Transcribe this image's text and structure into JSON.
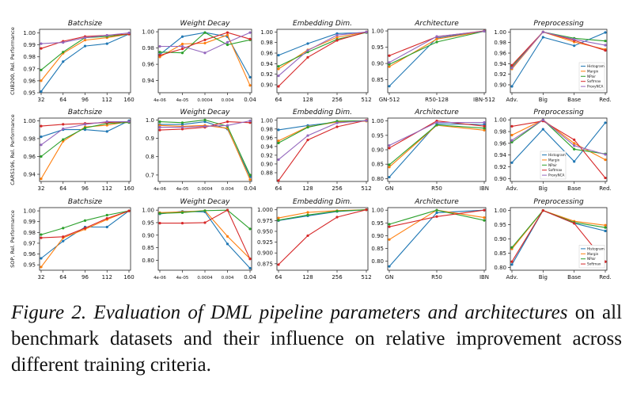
{
  "colors": {
    "Histogram": "#1f77b4",
    "Margin": "#ff7f0e",
    "NPair": "#2ca02c",
    "Softmax": "#d62728",
    "ProxyNCA": "#9467bd"
  },
  "caption": {
    "lead": "Figure 2.",
    "italic": "Evaluation of DML pipeline parameters and architectures",
    "rest": "on all benchmark datasets and their influence on relative improvement across different training criteria."
  },
  "chart_data": [
    {
      "type": "line",
      "row": 0,
      "col": 0,
      "title": "Batchsize",
      "ylabel": "CUB200, Rel. Performance",
      "categories": [
        "32",
        "64",
        "96",
        "112",
        "160"
      ],
      "ylim": [
        0.95,
        1.003
      ],
      "yticks": [
        0.95,
        0.96,
        0.97,
        0.98,
        0.99,
        1.0
      ],
      "ytick_labels": [
        "0.95",
        "0.96",
        "0.97",
        "0.98",
        "0.99",
        "1.00"
      ],
      "series": [
        {
          "name": "Histogram",
          "values": [
            0.951,
            0.976,
            0.989,
            0.991,
            0.999
          ]
        },
        {
          "name": "Margin",
          "values": [
            0.96,
            0.983,
            0.994,
            0.996,
            0.999
          ]
        },
        {
          "name": "NPair",
          "values": [
            0.969,
            0.984,
            0.996,
            0.997,
            0.999
          ]
        },
        {
          "name": "Softmax",
          "values": [
            0.987,
            0.993,
            0.997,
            0.998,
            0.999
          ]
        },
        {
          "name": "ProxyNCA",
          "values": [
            0.991,
            0.992,
            0.996,
            0.998,
            1.0
          ]
        }
      ]
    },
    {
      "type": "line",
      "row": 0,
      "col": 1,
      "title": "Weight Decay",
      "categories": [
        "4e-06",
        "4e-05",
        "0.0004",
        "0.004",
        "0.04"
      ],
      "ylim": [
        0.925,
        1.003
      ],
      "yticks": [
        0.94,
        0.96,
        0.98,
        1.0
      ],
      "ytick_labels": [
        "0.94",
        "0.96",
        "0.98",
        "1.00"
      ],
      "series": [
        {
          "name": "Histogram",
          "values": [
            0.972,
            0.994,
            0.999,
            0.994,
            0.944
          ]
        },
        {
          "name": "Margin",
          "values": [
            0.969,
            0.985,
            0.986,
            0.996,
            0.934
          ]
        },
        {
          "name": "NPair",
          "values": [
            0.975,
            0.974,
            0.999,
            0.984,
            0.99
          ]
        },
        {
          "name": "Softmax",
          "values": [
            0.971,
            0.979,
            0.99,
            0.999,
            0.991
          ]
        },
        {
          "name": "ProxyNCA",
          "values": [
            0.982,
            0.982,
            0.974,
            0.987,
            0.999
          ]
        }
      ]
    },
    {
      "type": "line",
      "row": 0,
      "col": 2,
      "title": "Embedding Dim.",
      "categories": [
        "64",
        "128",
        "256",
        "512"
      ],
      "ylim": [
        0.885,
        1.005
      ],
      "yticks": [
        0.9,
        0.92,
        0.94,
        0.96,
        0.98,
        1.0
      ],
      "ytick_labels": [
        "0.90",
        "0.92",
        "0.94",
        "0.96",
        "0.98",
        "1.00"
      ],
      "series": [
        {
          "name": "Histogram",
          "values": [
            0.956,
            0.978,
            0.997,
            0.999
          ]
        },
        {
          "name": "Margin",
          "values": [
            0.93,
            0.966,
            0.99,
            1.0
          ]
        },
        {
          "name": "NPair",
          "values": [
            0.935,
            0.962,
            0.986,
            0.999
          ]
        },
        {
          "name": "Softmax",
          "values": [
            0.897,
            0.952,
            0.984,
            1.0
          ]
        },
        {
          "name": "ProxyNCA",
          "values": [
            0.917,
            0.965,
            0.994,
            1.0
          ]
        }
      ]
    },
    {
      "type": "line",
      "row": 0,
      "col": 3,
      "title": "Architecture",
      "categories": [
        "GN-512",
        "R50-128",
        "IBN-512"
      ],
      "ylim": [
        0.81,
        1.005
      ],
      "yticks": [
        0.85,
        0.9,
        0.95,
        1.0
      ],
      "ytick_labels": [
        "0.85",
        "0.90",
        "0.95",
        "1.00"
      ],
      "series": [
        {
          "name": "Histogram",
          "values": [
            0.83,
            0.978,
            1.0
          ]
        },
        {
          "name": "Margin",
          "values": [
            0.89,
            0.975,
            0.999
          ]
        },
        {
          "name": "NPair",
          "values": [
            0.897,
            0.966,
            0.999
          ]
        },
        {
          "name": "Softmax",
          "values": [
            0.924,
            0.982,
            1.0
          ]
        },
        {
          "name": "ProxyNCA",
          "values": [
            0.903,
            0.983,
            0.999
          ]
        }
      ]
    },
    {
      "type": "line",
      "row": 0,
      "col": 4,
      "title": "Preprocessing",
      "categories": [
        "Adv.",
        "Big",
        "Base",
        "Red."
      ],
      "ylim": [
        0.885,
        1.005
      ],
      "yticks": [
        0.9,
        0.92,
        0.94,
        0.96,
        0.98,
        1.0
      ],
      "ytick_labels": [
        "0.90",
        "0.92",
        "0.94",
        "0.96",
        "0.98",
        "1.00"
      ],
      "legend": [
        "Histogram",
        "Margin",
        "NPair",
        "Softmax",
        "ProxyNCA"
      ],
      "legend_position": "bottom-right",
      "series": [
        {
          "name": "Histogram",
          "values": [
            0.897,
            0.99,
            0.974,
            0.999
          ]
        },
        {
          "name": "Margin",
          "values": [
            0.93,
            1.0,
            0.981,
            0.967
          ]
        },
        {
          "name": "NPair",
          "values": [
            0.934,
            1.0,
            0.988,
            0.983
          ]
        },
        {
          "name": "Softmax",
          "values": [
            0.937,
            1.0,
            0.984,
            0.965
          ]
        },
        {
          "name": "ProxyNCA",
          "values": [
            0.932,
            1.0,
            0.986,
            0.975
          ]
        }
      ]
    },
    {
      "type": "line",
      "row": 1,
      "col": 0,
      "title": "Batchsize",
      "ylabel": "CARS196, Rel. Performance",
      "categories": [
        "32",
        "64",
        "96",
        "112",
        "160"
      ],
      "ylim": [
        0.932,
        1.003
      ],
      "yticks": [
        0.94,
        0.96,
        0.98,
        1.0
      ],
      "ytick_labels": [
        "0.94",
        "0.96",
        "0.98",
        "1.00"
      ],
      "series": [
        {
          "name": "Histogram",
          "values": [
            0.982,
            0.99,
            0.99,
            0.988,
            1.0
          ]
        },
        {
          "name": "Margin",
          "values": [
            0.935,
            0.977,
            0.993,
            0.995,
            0.999
          ]
        },
        {
          "name": "NPair",
          "values": [
            0.96,
            0.979,
            0.992,
            0.997,
            0.998
          ]
        },
        {
          "name": "Softmax",
          "values": [
            0.994,
            0.996,
            0.997,
            0.998,
            0.999
          ]
        },
        {
          "name": "ProxyNCA",
          "values": [
            0.973,
            0.991,
            0.996,
            0.999,
            0.999
          ]
        }
      ]
    },
    {
      "type": "line",
      "row": 1,
      "col": 1,
      "title": "Weight Decay",
      "categories": [
        "4e-06",
        "4e-05",
        "0.0004",
        "0.004",
        "0.04"
      ],
      "ylim": [
        0.665,
        1.01
      ],
      "yticks": [
        0.7,
        0.8,
        0.9,
        1.0
      ],
      "ytick_labels": [
        "0.7",
        "0.8",
        "0.9",
        "1.0"
      ],
      "series": [
        {
          "name": "Histogram",
          "values": [
            0.975,
            0.975,
            0.99,
            0.95,
            0.69
          ]
        },
        {
          "name": "Margin",
          "values": [
            0.97,
            0.965,
            0.97,
            0.955,
            0.675
          ]
        },
        {
          "name": "NPair",
          "values": [
            0.99,
            0.985,
            1.0,
            0.965,
            0.7
          ]
        },
        {
          "name": "Softmax",
          "values": [
            0.945,
            0.95,
            0.96,
            0.99,
            0.985
          ]
        },
        {
          "name": "ProxyNCA",
          "values": [
            0.96,
            0.96,
            0.965,
            0.97,
            0.995
          ]
        }
      ]
    },
    {
      "type": "line",
      "row": 1,
      "col": 2,
      "title": "Embedding Dim.",
      "categories": [
        "64",
        "128",
        "256",
        "512"
      ],
      "ylim": [
        0.86,
        1.005
      ],
      "yticks": [
        0.88,
        0.9,
        0.92,
        0.94,
        0.96,
        0.98,
        1.0
      ],
      "ytick_labels": [
        "0.88",
        "0.90",
        "0.92",
        "0.94",
        "0.96",
        "0.98",
        "1.00"
      ],
      "series": [
        {
          "name": "Histogram",
          "values": [
            0.978,
            0.988,
            0.996,
            0.999
          ]
        },
        {
          "name": "Margin",
          "values": [
            0.953,
            0.985,
            0.996,
            0.998
          ]
        },
        {
          "name": "NPair",
          "values": [
            0.948,
            0.984,
            0.998,
            0.999
          ]
        },
        {
          "name": "Softmax",
          "values": [
            0.862,
            0.955,
            0.985,
            1.0
          ]
        },
        {
          "name": "ProxyNCA",
          "values": [
            0.91,
            0.965,
            0.994,
            0.999
          ]
        }
      ]
    },
    {
      "type": "line",
      "row": 1,
      "col": 3,
      "title": "Architecture",
      "categories": [
        "GN",
        "R50",
        "IBN"
      ],
      "ylim": [
        0.79,
        1.01
      ],
      "yticks": [
        0.8,
        0.85,
        0.9,
        0.95,
        1.0
      ],
      "ytick_labels": [
        "0.80",
        "0.85",
        "0.90",
        "0.95",
        "1.00"
      ],
      "series": [
        {
          "name": "Histogram",
          "values": [
            0.805,
            0.99,
            0.988
          ]
        },
        {
          "name": "Margin",
          "values": [
            0.84,
            0.985,
            0.968
          ]
        },
        {
          "name": "NPair",
          "values": [
            0.848,
            0.986,
            0.975
          ]
        },
        {
          "name": "Softmax",
          "values": [
            0.906,
            1.0,
            0.982
          ]
        },
        {
          "name": "ProxyNCA",
          "values": [
            0.915,
            0.995,
            0.995
          ]
        }
      ]
    },
    {
      "type": "line",
      "row": 1,
      "col": 4,
      "title": "Preprocessing",
      "categories": [
        "Adv.",
        "Big",
        "Base",
        "Red."
      ],
      "ylim": [
        0.895,
        1.003
      ],
      "yticks": [
        0.9,
        0.92,
        0.94,
        0.96,
        0.98,
        1.0
      ],
      "ytick_labels": [
        "0.90",
        "0.92",
        "0.94",
        "0.96",
        "0.98",
        "1.00"
      ],
      "legend": [
        "Histogram",
        "Margin",
        "NPair",
        "Softmax",
        "ProxyNCA"
      ],
      "legend_position": "center-left",
      "series": [
        {
          "name": "Histogram",
          "values": [
            0.927,
            0.984,
            0.929,
            0.995
          ]
        },
        {
          "name": "Margin",
          "values": [
            0.974,
            1.0,
            0.96,
            0.932
          ]
        },
        {
          "name": "NPair",
          "values": [
            0.962,
            1.0,
            0.95,
            0.942
          ]
        },
        {
          "name": "Softmax",
          "values": [
            0.989,
            0.998,
            0.966,
            0.901
          ]
        },
        {
          "name": "ProxyNCA",
          "values": [
            0.965,
            1.0,
            0.956,
            0.941
          ]
        }
      ]
    },
    {
      "type": "line",
      "row": 2,
      "col": 0,
      "title": "Batchsize",
      "ylabel": "SOP, Rel. Performance",
      "categories": [
        "32",
        "64",
        "96",
        "112",
        "160"
      ],
      "ylim": [
        0.945,
        1.003
      ],
      "yticks": [
        0.95,
        0.96,
        0.97,
        0.98,
        0.99,
        1.0
      ],
      "ytick_labels": [
        "0.95",
        "0.96",
        "0.97",
        "0.98",
        "0.99",
        "1.00"
      ],
      "series": [
        {
          "name": "Histogram",
          "values": [
            0.956,
            0.972,
            0.985,
            0.985,
            1.0
          ]
        },
        {
          "name": "Margin",
          "values": [
            0.948,
            0.975,
            0.983,
            0.992,
            1.0
          ]
        },
        {
          "name": "NPair",
          "values": [
            0.978,
            0.984,
            0.991,
            0.996,
            1.0
          ]
        },
        {
          "name": "Softmax",
          "values": [
            0.975,
            0.976,
            0.984,
            0.993,
            1.0
          ]
        }
      ]
    },
    {
      "type": "line",
      "row": 2,
      "col": 1,
      "title": "Weight Decay",
      "categories": [
        "4e-06",
        "4e-05",
        "0.0004",
        "0.004",
        "0.04"
      ],
      "ylim": [
        0.76,
        1.01
      ],
      "yticks": [
        0.8,
        0.85,
        0.9,
        0.95,
        1.0
      ],
      "ytick_labels": [
        "0.80",
        "0.85",
        "0.90",
        "0.95",
        "1.00"
      ],
      "series": [
        {
          "name": "Histogram",
          "values": [
            0.985,
            0.995,
            0.993,
            0.865,
            0.768
          ]
        },
        {
          "name": "Margin",
          "values": [
            0.99,
            0.993,
            0.998,
            0.895,
            0.806
          ]
        },
        {
          "name": "NPair",
          "values": [
            0.987,
            0.99,
            0.998,
            1.0,
            0.925
          ]
        },
        {
          "name": "Softmax",
          "values": [
            0.948,
            0.948,
            0.95,
            1.0,
            0.805
          ]
        }
      ]
    },
    {
      "type": "line",
      "row": 2,
      "col": 2,
      "title": "Embedding Dim.",
      "categories": [
        "64",
        "128",
        "256",
        "512"
      ],
      "ylim": [
        0.86,
        1.005
      ],
      "yticks": [
        0.875,
        0.9,
        0.925,
        0.95,
        0.975,
        1.0
      ],
      "ytick_labels": [
        "0.875",
        "0.900",
        "0.925",
        "0.950",
        "0.975",
        "1.000"
      ],
      "series": [
        {
          "name": "Histogram",
          "values": [
            0.975,
            0.986,
            0.996,
            1.0
          ]
        },
        {
          "name": "Margin",
          "values": [
            0.981,
            0.994,
            0.998,
            1.0
          ]
        },
        {
          "name": "NPair",
          "values": [
            0.976,
            0.988,
            0.997,
            1.0
          ]
        },
        {
          "name": "Softmax",
          "values": [
            0.873,
            0.94,
            0.983,
            1.0
          ]
        }
      ]
    },
    {
      "type": "line",
      "row": 2,
      "col": 3,
      "title": "Architecture",
      "categories": [
        "GN",
        "R50",
        "IBN"
      ],
      "ylim": [
        0.765,
        1.01
      ],
      "yticks": [
        0.8,
        0.85,
        0.9,
        0.95,
        1.0
      ],
      "ytick_labels": [
        "0.80",
        "0.85",
        "0.90",
        "0.95",
        "1.00"
      ],
      "series": [
        {
          "name": "Histogram",
          "values": [
            0.78,
            0.99,
            1.0
          ]
        },
        {
          "name": "Margin",
          "values": [
            0.885,
            1.0,
            0.971
          ]
        },
        {
          "name": "NPair",
          "values": [
            0.945,
            1.0,
            0.96
          ]
        },
        {
          "name": "Softmax",
          "values": [
            0.935,
            0.975,
            1.0
          ]
        }
      ]
    },
    {
      "type": "line",
      "row": 2,
      "col": 4,
      "title": "Preprocessing",
      "categories": [
        "Adv.",
        "Big",
        "Base",
        "Red."
      ],
      "ylim": [
        0.79,
        1.01
      ],
      "yticks": [
        0.8,
        0.85,
        0.9,
        0.95,
        1.0
      ],
      "ytick_labels": [
        "0.80",
        "0.85",
        "0.90",
        "0.95",
        "1.00"
      ],
      "legend": [
        "Histogram",
        "Margin",
        "NPair",
        "Softmax"
      ],
      "legend_position": "bottom-right",
      "series": [
        {
          "name": "Histogram",
          "values": [
            0.81,
            1.0,
            0.955,
            0.928
          ]
        },
        {
          "name": "Margin",
          "values": [
            0.865,
            1.0,
            0.962,
            0.948
          ]
        },
        {
          "name": "NPair",
          "values": [
            0.87,
            1.0,
            0.958,
            0.94
          ]
        },
        {
          "name": "Softmax",
          "values": [
            0.82,
            1.0,
            0.955,
            0.82
          ]
        }
      ]
    }
  ]
}
